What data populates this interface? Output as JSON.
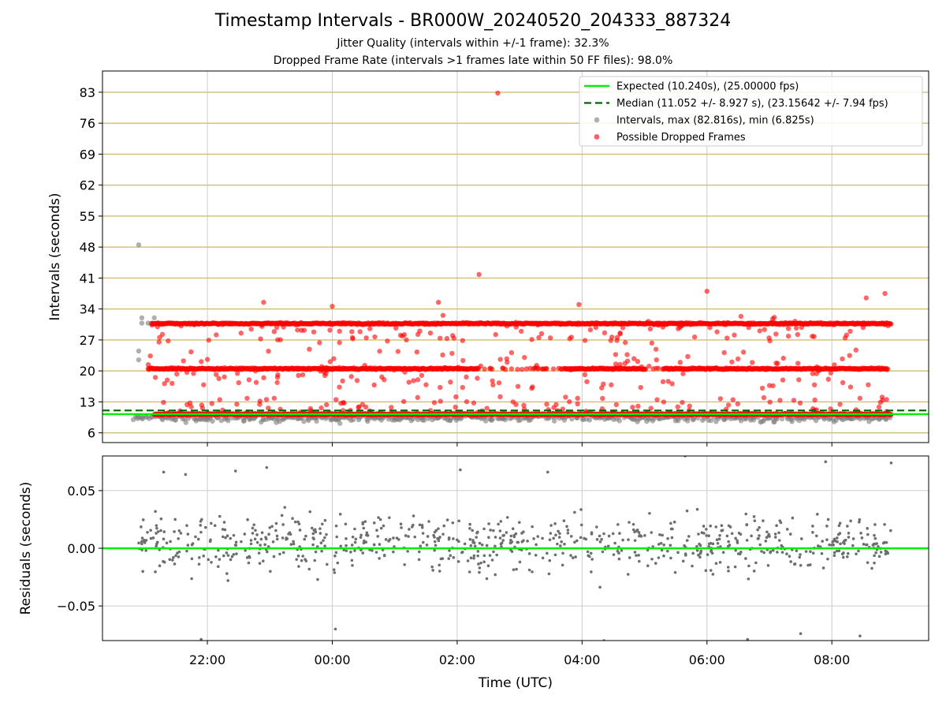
{
  "title": "Timestamp Intervals - BR000W_20240520_204333_887324",
  "subtitle_1": "Jitter Quality (intervals within +/-1 frame): 32.3%",
  "subtitle_2": "Dropped Frame Rate (intervals >1 frames late within 50 FF files): 98.0%",
  "colors": {
    "expected": "#00ee00",
    "median": "#006400",
    "intervals": "#808080",
    "dropped": "#ff0000",
    "hgrid": "#d2bc7a",
    "grid": "#cccccc",
    "residuals": "#6e6e6e"
  },
  "chart_data": [
    {
      "type": "scatter",
      "name": "intervals-panel",
      "ylabel": "Intervals (seconds)",
      "xlabel": "",
      "x_unit": "hours relative to 2024-05-21 00:00 UTC",
      "xlim": [
        -3.68,
        9.55
      ],
      "ylim": [
        3.8,
        87.8
      ],
      "yticks": [
        6,
        13,
        20,
        27,
        34,
        41,
        48,
        55,
        62,
        69,
        76,
        83
      ],
      "xticks": [
        {
          "value": -2,
          "label": "22:00"
        },
        {
          "value": 0,
          "label": "00:00"
        },
        {
          "value": 2,
          "label": "02:00"
        },
        {
          "value": 4,
          "label": "04:00"
        },
        {
          "value": 6,
          "label": "06:00"
        },
        {
          "value": 8,
          "label": "08:00"
        }
      ],
      "grid": true,
      "legend_position": "top-right",
      "legend": [
        {
          "label": "Expected (10.240s), (25.00000 fps)",
          "kind": "solid-line",
          "color": "#00ee00"
        },
        {
          "label": "Median (11.052 +/- 8.927 s), (23.15642 +/- 7.94 fps)",
          "kind": "dashed-line",
          "color": "#006400"
        },
        {
          "label": "Intervals, max (82.816s), min (6.825s)",
          "kind": "dot",
          "color": "#808080"
        },
        {
          "label": "Possible Dropped Frames",
          "kind": "dot",
          "color": "#ff0000"
        }
      ],
      "expected_interval": 10.24,
      "median_interval": 11.052,
      "x_range": [
        -3.2,
        8.95
      ],
      "bands": [
        {
          "series": "Possible Dropped Frames",
          "level": 30.7,
          "x_start": -2.9,
          "x_end": 8.95
        },
        {
          "series": "Possible Dropped Frames",
          "level": 20.5,
          "x_start": -2.95,
          "x_end": 8.9
        },
        {
          "series": "Possible Dropped Frames",
          "level": 10.2,
          "x_start": -2.85,
          "x_end": 8.95
        },
        {
          "series": "Intervals, max (82.816s), min (6.825s)",
          "level": 10.0,
          "x_start": -3.2,
          "x_end": 8.95
        }
      ],
      "points": [
        {
          "series": "Intervals, max (82.816s), min (6.825s)",
          "x": -3.1,
          "y": 48.5
        },
        {
          "series": "Intervals, max (82.816s), min (6.825s)",
          "x": -3.1,
          "y": 24.5
        },
        {
          "series": "Intervals, max (82.816s), min (6.825s)",
          "x": -3.1,
          "y": 22.5
        },
        {
          "series": "Intervals, max (82.816s), min (6.825s)",
          "x": -3.05,
          "y": 32.0
        },
        {
          "series": "Intervals, max (82.816s), min (6.825s)",
          "x": -3.05,
          "y": 30.8
        },
        {
          "series": "Intervals, max (82.816s), min (6.825s)",
          "x": -2.95,
          "y": 30.8
        },
        {
          "series": "Intervals, max (82.816s), min (6.825s)",
          "x": -2.85,
          "y": 32.0
        },
        {
          "series": "Possible Dropped Frames",
          "x": 2.65,
          "y": 82.8
        },
        {
          "series": "Possible Dropped Frames",
          "x": 2.35,
          "y": 41.8
        },
        {
          "series": "Possible Dropped Frames",
          "x": 6.0,
          "y": 38.0
        },
        {
          "series": "Possible Dropped Frames",
          "x": 8.85,
          "y": 37.5
        },
        {
          "series": "Possible Dropped Frames",
          "x": 8.55,
          "y": 36.5
        },
        {
          "series": "Possible Dropped Frames",
          "x": -1.1,
          "y": 35.5
        },
        {
          "series": "Possible Dropped Frames",
          "x": 0.0,
          "y": 34.6
        },
        {
          "series": "Possible Dropped Frames",
          "x": 1.7,
          "y": 35.5
        },
        {
          "series": "Possible Dropped Frames",
          "x": 3.95,
          "y": 35.0
        },
        {
          "series": "Possible Dropped Frames",
          "x": 7.05,
          "y": 31.0
        }
      ]
    },
    {
      "type": "scatter",
      "name": "residuals-panel",
      "ylabel": "Residuals (seconds)",
      "xlabel": "Time (UTC)",
      "x_unit": "hours relative to 2024-05-21 00:00 UTC",
      "xlim": [
        -3.68,
        9.55
      ],
      "ylim": [
        -0.08,
        0.08
      ],
      "yticks": [
        {
          "value": 0.05,
          "label": "0.05"
        },
        {
          "value": 0.0,
          "label": "0.00"
        },
        {
          "value": -0.05,
          "label": "−0.05"
        }
      ],
      "xticks": [
        {
          "value": -2,
          "label": "22:00"
        },
        {
          "value": 0,
          "label": "00:00"
        },
        {
          "value": 2,
          "label": "02:00"
        },
        {
          "value": 4,
          "label": "04:00"
        },
        {
          "value": 6,
          "label": "06:00"
        },
        {
          "value": 8,
          "label": "08:00"
        }
      ],
      "grid": true,
      "zero_line": 0.0,
      "x_range": [
        -3.1,
        8.95
      ],
      "typical_spread": 0.03,
      "points": [
        {
          "x": -2.7,
          "y": 0.066
        },
        {
          "x": -2.35,
          "y": 0.064
        },
        {
          "x": -1.55,
          "y": 0.067
        },
        {
          "x": -1.05,
          "y": 0.07
        },
        {
          "x": 2.05,
          "y": 0.068
        },
        {
          "x": 3.45,
          "y": 0.066
        },
        {
          "x": 5.65,
          "y": 0.08
        },
        {
          "x": 7.9,
          "y": 0.075
        },
        {
          "x": 8.95,
          "y": 0.074
        },
        {
          "x": -2.1,
          "y": -0.079
        },
        {
          "x": 0.05,
          "y": -0.07
        },
        {
          "x": 4.35,
          "y": -0.08
        },
        {
          "x": 6.65,
          "y": -0.079
        },
        {
          "x": 7.5,
          "y": -0.074
        },
        {
          "x": 8.45,
          "y": -0.076
        }
      ]
    }
  ]
}
